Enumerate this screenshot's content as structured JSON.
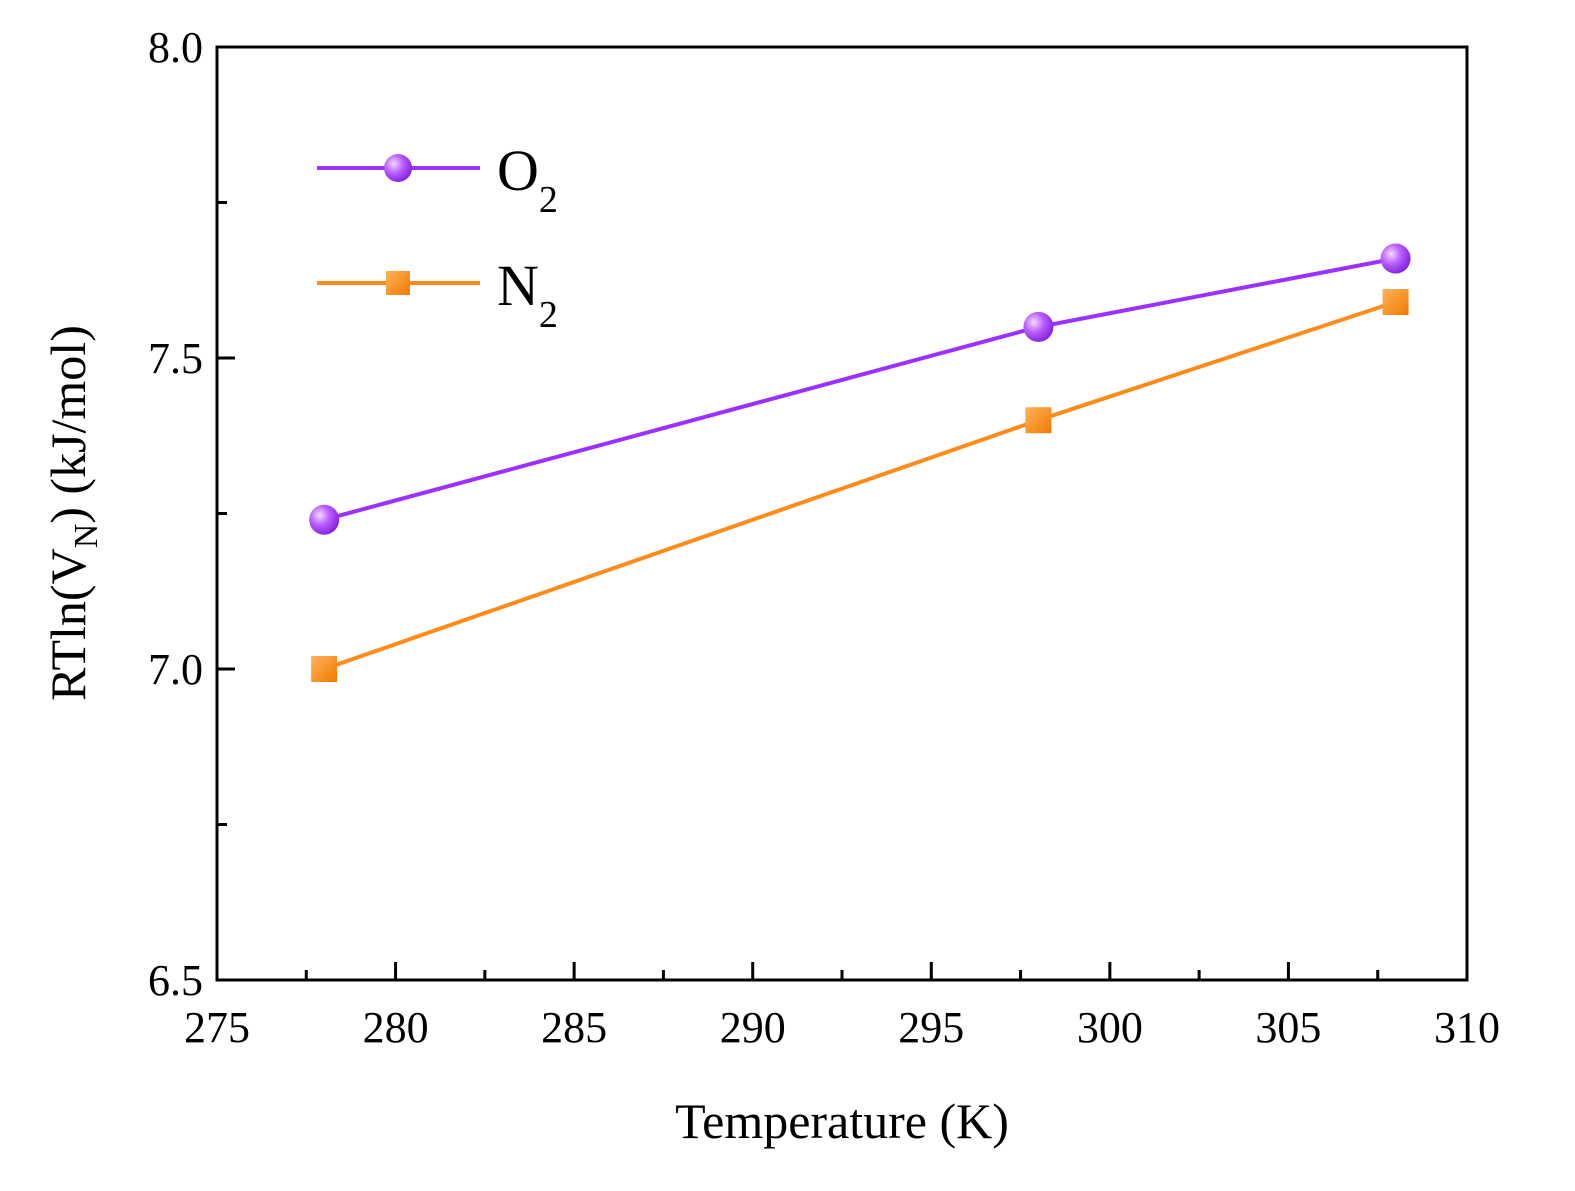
{
  "chart_data": {
    "type": "line",
    "xlabel": "Temperature (K)",
    "ylabel": {
      "prefix": "RTln(V",
      "subscript": "N",
      "suffix": ") (kJ/mol)"
    },
    "xlim": [
      275,
      310
    ],
    "ylim": [
      6.5,
      8.0
    ],
    "x_ticks": [
      275,
      280,
      285,
      290,
      295,
      300,
      305,
      310
    ],
    "x_tick_labels": [
      "275",
      "280",
      "285",
      "290",
      "295",
      "300",
      "305",
      "310"
    ],
    "y_ticks": [
      6.5,
      7.0,
      7.5,
      8.0
    ],
    "y_tick_labels": [
      "6.5",
      "7.0",
      "7.5",
      "8.0"
    ],
    "legend_position": "top-left",
    "series": [
      {
        "name": "O2",
        "label_main": "O",
        "label_sub": "2",
        "marker": "circle",
        "color": "#9b30ff",
        "x": [
          278,
          298,
          308
        ],
        "y": [
          7.24,
          7.55,
          7.66
        ]
      },
      {
        "name": "N2",
        "label_main": "N",
        "label_sub": "2",
        "marker": "square",
        "color": "#ff8c1a",
        "x": [
          278,
          298,
          308
        ],
        "y": [
          7.0,
          7.4,
          7.59
        ]
      }
    ]
  }
}
